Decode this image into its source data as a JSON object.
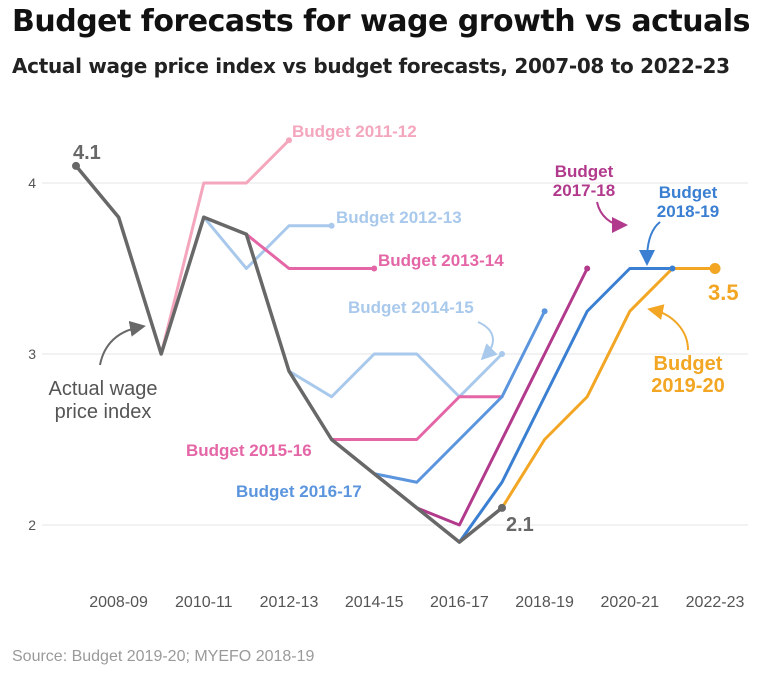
{
  "title": "Budget forecasts for wage growth vs actuals",
  "subtitle": "Actual wage price index vs budget forecasts, 2007-08 to 2022-23",
  "source": "Source: Budget 2019-20; MYEFO 2018-19",
  "chart_data": {
    "type": "line",
    "title": "Budget forecasts for wage growth vs actuals",
    "subtitle": "Actual wage price index vs budget forecasts, 2007-08 to 2022-23",
    "xlabel": "",
    "ylabel": "",
    "x": [
      "2007-08",
      "2008-09",
      "2009-10",
      "2010-11",
      "2011-12",
      "2012-13",
      "2013-14",
      "2014-15",
      "2015-16",
      "2016-17",
      "2017-18",
      "2018-19",
      "2019-20",
      "2020-21",
      "2021-22",
      "2022-23"
    ],
    "x_tick_labels": [
      "2008-09",
      "2010-11",
      "2012-13",
      "2014-15",
      "2016-17",
      "2018-19",
      "2020-21",
      "2022-23"
    ],
    "y_ticks": [
      2,
      3,
      4
    ],
    "ylim": [
      1.8,
      4.3
    ],
    "grid": "horizontal",
    "legend": "none (direct labels)",
    "series": [
      {
        "name": "Budget 2011-12",
        "color": "#f4a6bd",
        "x": [
          "2009-10",
          "2010-11",
          "2011-12",
          "2012-13"
        ],
        "values": [
          3.0,
          4.0,
          4.0,
          4.25
        ]
      },
      {
        "name": "Budget 2012-13",
        "color": "#a9c9ec",
        "x": [
          "2010-11",
          "2011-12",
          "2012-13",
          "2013-14"
        ],
        "values": [
          3.8,
          3.5,
          3.75,
          3.75
        ]
      },
      {
        "name": "Budget 2013-14",
        "color": "#e466a6",
        "x": [
          "2011-12",
          "2012-13",
          "2013-14",
          "2014-15"
        ],
        "values": [
          3.7,
          3.5,
          3.5,
          3.5
        ]
      },
      {
        "name": "Budget 2014-15",
        "color": "#a9c9ec",
        "x": [
          "2012-13",
          "2013-14",
          "2014-15",
          "2015-16",
          "2016-17",
          "2017-18"
        ],
        "values": [
          2.9,
          2.75,
          3.0,
          3.0,
          2.75,
          3.0
        ]
      },
      {
        "name": "Budget 2015-16",
        "color": "#e466a6",
        "x": [
          "2013-14",
          "2014-15",
          "2015-16",
          "2016-17",
          "2017-18"
        ],
        "values": [
          2.5,
          2.5,
          2.5,
          2.75,
          2.75
        ]
      },
      {
        "name": "Budget 2016-17",
        "color": "#5b95dd",
        "x": [
          "2014-15",
          "2015-16",
          "2016-17",
          "2017-18",
          "2018-19"
        ],
        "values": [
          2.3,
          2.25,
          2.5,
          2.75,
          3.25
        ]
      },
      {
        "name": "Budget 2017-18",
        "color": "#b23a8c",
        "x": [
          "2015-16",
          "2016-17",
          "2017-18",
          "2018-19",
          "2019-20"
        ],
        "values": [
          2.1,
          2.0,
          2.5,
          3.0,
          3.5
        ]
      },
      {
        "name": "Budget 2018-19",
        "color": "#3a7fd1",
        "x": [
          "2016-17",
          "2017-18",
          "2018-19",
          "2019-20",
          "2020-21",
          "2021-22"
        ],
        "values": [
          1.9,
          2.25,
          2.75,
          3.25,
          3.5,
          3.5
        ]
      },
      {
        "name": "Budget 2019-20",
        "color": "#f2a623",
        "x": [
          "2017-18",
          "2018-19",
          "2019-20",
          "2020-21",
          "2021-22",
          "2022-23"
        ],
        "values": [
          2.1,
          2.5,
          2.75,
          3.25,
          3.5,
          3.5
        ]
      },
      {
        "name": "Actual wage price index",
        "color": "#686868",
        "x": [
          "2007-08",
          "2008-09",
          "2009-10",
          "2010-11",
          "2011-12",
          "2012-13",
          "2013-14",
          "2014-15",
          "2015-16",
          "2016-17",
          "2017-18"
        ],
        "values": [
          4.1,
          3.8,
          3.0,
          3.8,
          3.7,
          2.9,
          2.5,
          2.3,
          2.1,
          1.9,
          2.1
        ]
      }
    ],
    "annotations": [
      {
        "text": "4.1",
        "x": "2007-08",
        "y": 4.1
      },
      {
        "text": "2.1",
        "x": "2017-18",
        "y": 2.1
      },
      {
        "text": "3.5",
        "x": "2022-23",
        "y": 3.5
      }
    ]
  }
}
